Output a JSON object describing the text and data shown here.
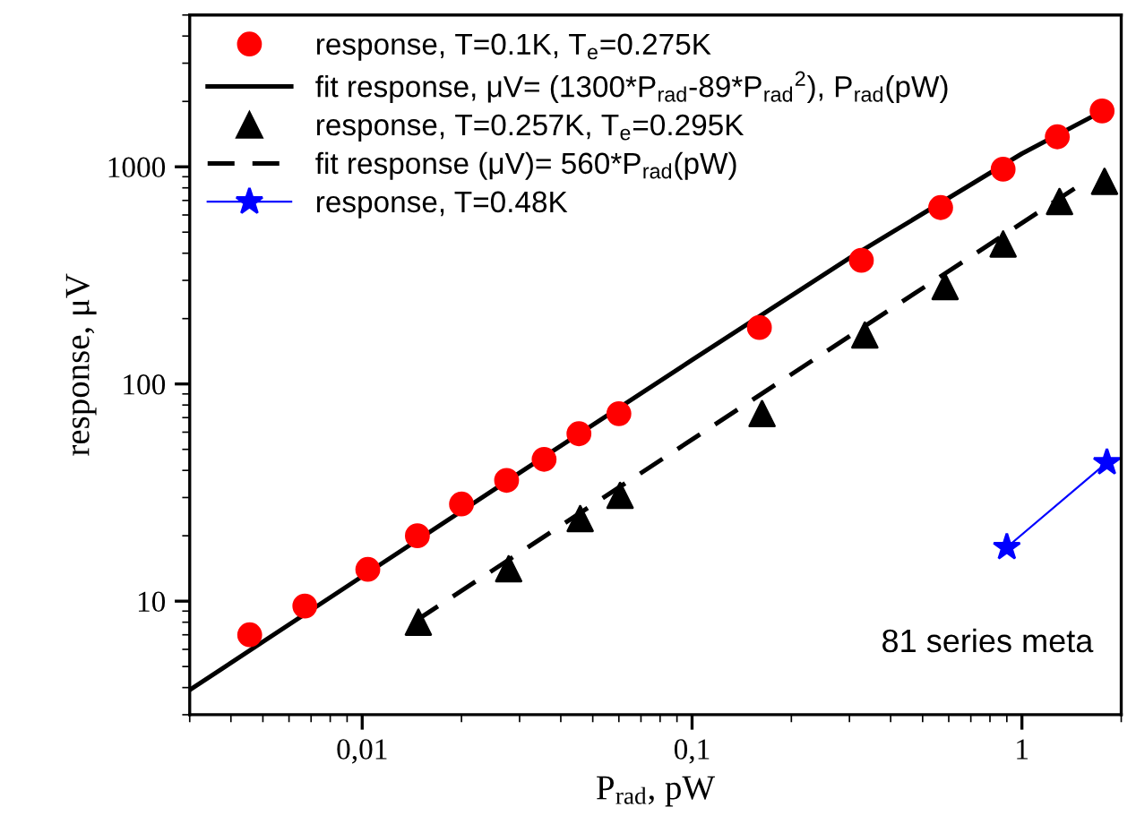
{
  "chart_data": {
    "type": "scatter",
    "xlabel": "P$_{rad}$, pW",
    "ylabel": "response, μV",
    "log": "xy",
    "xlim": [
      0.003,
      2
    ],
    "ylim": [
      3,
      5000
    ],
    "xticks": [
      {
        "value": 0.01,
        "label": "0,01"
      },
      {
        "value": 0.1,
        "label": "0,1"
      },
      {
        "value": 1,
        "label": "1"
      }
    ],
    "yticks": [
      10,
      100,
      1000
    ],
    "grid": false,
    "legend": "top left",
    "annotations": [
      "81 series meta"
    ],
    "series": [
      {
        "name": "response, T=0.1K, T$_{e}$=0.275K",
        "marker": "circle",
        "color": "#ff0000",
        "x": [
          0.00456,
          0.0067,
          0.0104,
          0.0147,
          0.02,
          0.0274,
          0.0356,
          0.0454,
          0.06,
          0.16,
          0.326,
          0.567,
          0.877,
          1.28,
          1.75
        ],
        "values": [
          7.0,
          9.5,
          14,
          20,
          28,
          36,
          45,
          59,
          73,
          182,
          371,
          649,
          975,
          1374,
          1808
        ]
      },
      {
        "name": "fit response, μV= (1300*P$_{rad}$-89*P$_{rad}$$^{2}$), P$_{rad}$(pW)",
        "type": "line",
        "line_style": "solid",
        "marker": "none",
        "color": "#000000",
        "x": [
          0.003,
          0.01,
          0.03,
          0.1,
          0.3,
          1,
          1.75
        ],
        "values": [
          3.9,
          13,
          39,
          129,
          380,
          1150,
          1800
        ]
      },
      {
        "name": "response, T=0.257K, T$_{e}$=0.295K",
        "marker": "triangle",
        "color": "#000000",
        "x": [
          0.0148,
          0.0278,
          0.0458,
          0.0605,
          0.163,
          0.334,
          0.585,
          0.877,
          1.3,
          1.78
        ],
        "values": [
          8.0,
          14.1,
          24,
          30.7,
          73,
          168,
          281,
          441,
          692,
          857
        ]
      },
      {
        "name": "fit response (μV)= 560*P$_{rad}$(pW)",
        "type": "line",
        "line_style": "dashed",
        "marker": "none",
        "color": "#000000",
        "x": [
          0.0145,
          1.6
        ],
        "values": [
          8.1,
          880
        ]
      },
      {
        "name": "response, T=0.48K",
        "type": "line",
        "line_style": "solid",
        "marker": "star",
        "color": "#0000ff",
        "x": [
          0.9,
          1.81
        ],
        "values": [
          17.7,
          43.5
        ]
      }
    ]
  }
}
